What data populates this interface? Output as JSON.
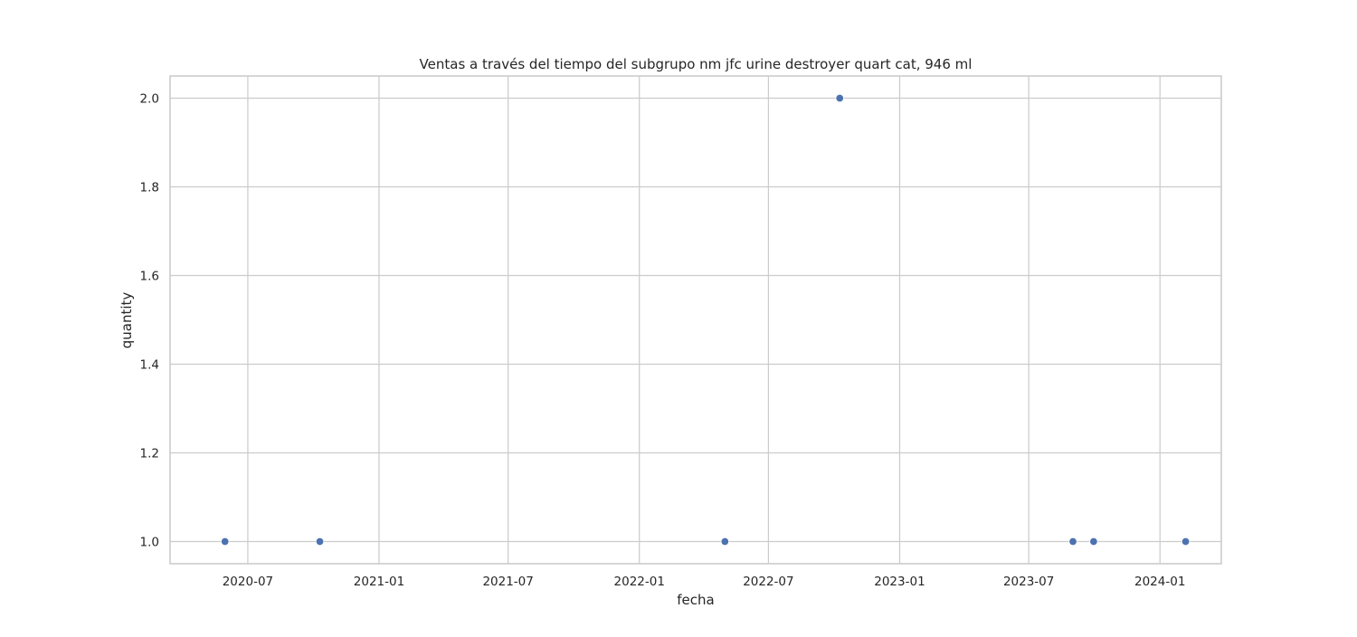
{
  "chart_data": {
    "type": "scatter",
    "title": "Ventas a través del tiempo del subgrupo nm jfc urine destroyer quart cat, 946 ml",
    "xlabel": "fecha",
    "ylabel": "quantity",
    "x_ticks": [
      "2020-07",
      "2021-01",
      "2021-07",
      "2022-01",
      "2022-07",
      "2023-01",
      "2023-07",
      "2024-01"
    ],
    "y_ticks": [
      "1.0",
      "1.2",
      "1.4",
      "1.6",
      "1.8",
      "2.0"
    ],
    "xlim": [
      "2020-03-14",
      "2024-03-27"
    ],
    "ylim": [
      0.95,
      2.05
    ],
    "grid": true,
    "marker_color": "#4c72b0",
    "series": [
      {
        "x": [
          "2020-05-30",
          "2020-10-10",
          "2022-05-01",
          "2022-10-09",
          "2023-09-01",
          "2023-09-30",
          "2024-02-06"
        ],
        "y": [
          1,
          1,
          1,
          2,
          1,
          1,
          1
        ]
      }
    ]
  }
}
